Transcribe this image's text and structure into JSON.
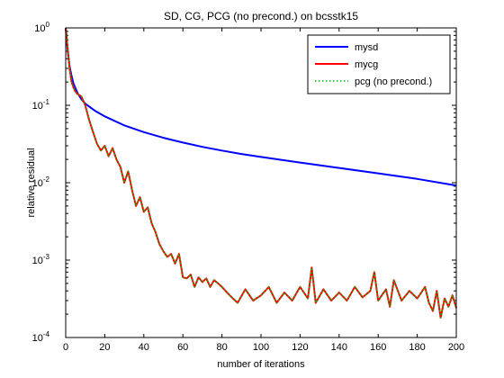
{
  "chart_data": {
    "type": "line",
    "title": "SD, CG, PCG (no precond.) on bcsstk15",
    "xlabel": "number of iterations",
    "ylabel": "relative residual",
    "xlim": [
      0,
      200
    ],
    "ylim": [
      0.0001,
      1
    ],
    "yscale": "log",
    "grid": false,
    "legend_position": "top-right",
    "x_ticks": [
      0,
      20,
      40,
      60,
      80,
      100,
      120,
      140,
      160,
      180,
      200
    ],
    "x_tick_labels": [
      "0",
      "20",
      "40",
      "60",
      "80",
      "100",
      "120",
      "140",
      "160",
      "180",
      "200"
    ],
    "y_ticks": [
      0.0001,
      0.001,
      0.01,
      0.1,
      1
    ],
    "y_tick_labels": [
      {
        "base": "10",
        "exp": "-4"
      },
      {
        "base": "10",
        "exp": "-3"
      },
      {
        "base": "10",
        "exp": "-2"
      },
      {
        "base": "10",
        "exp": "-1"
      },
      {
        "base": "10",
        "exp": "0"
      }
    ],
    "series": [
      {
        "name": "mysd",
        "color": "#0000ff",
        "style": "solid",
        "x": [
          0,
          1,
          2,
          3,
          4,
          6,
          8,
          10,
          15,
          20,
          30,
          40,
          50,
          60,
          70,
          80,
          90,
          100,
          120,
          140,
          160,
          180,
          200
        ],
        "y": [
          1.0,
          0.5,
          0.32,
          0.24,
          0.19,
          0.145,
          0.12,
          0.105,
          0.085,
          0.072,
          0.055,
          0.045,
          0.038,
          0.033,
          0.029,
          0.026,
          0.0235,
          0.0215,
          0.0182,
          0.0155,
          0.0132,
          0.0112,
          0.0092
        ]
      },
      {
        "name": "mycg",
        "color": "#ff0000",
        "style": "solid",
        "x": [
          0,
          1,
          2,
          3,
          4,
          5,
          6,
          8,
          10,
          12,
          14,
          16,
          18,
          20,
          22,
          24,
          26,
          28,
          30,
          32,
          34,
          36,
          38,
          40,
          42,
          44,
          46,
          48,
          50,
          52,
          54,
          56,
          58,
          60,
          62,
          64,
          66,
          68,
          70,
          72,
          74,
          76,
          78,
          80,
          84,
          88,
          92,
          96,
          100,
          104,
          108,
          112,
          116,
          120,
          124,
          126,
          128,
          132,
          136,
          140,
          144,
          148,
          152,
          156,
          158,
          160,
          164,
          166,
          168,
          172,
          176,
          180,
          184,
          186,
          188,
          190,
          192,
          194,
          196,
          198,
          200
        ],
        "y": [
          1.0,
          0.55,
          0.3,
          0.2,
          0.17,
          0.15,
          0.14,
          0.13,
          0.1,
          0.065,
          0.045,
          0.032,
          0.026,
          0.03,
          0.022,
          0.028,
          0.02,
          0.016,
          0.01,
          0.014,
          0.008,
          0.005,
          0.0065,
          0.0042,
          0.0048,
          0.003,
          0.0023,
          0.0016,
          0.0013,
          0.0011,
          0.0012,
          0.0009,
          0.0012,
          0.0006,
          0.00058,
          0.00065,
          0.00045,
          0.0006,
          0.00052,
          0.00058,
          0.00045,
          0.00055,
          0.0005,
          0.00045,
          0.00035,
          0.00028,
          0.00042,
          0.0003,
          0.00035,
          0.00045,
          0.00028,
          0.00038,
          0.0003,
          0.00045,
          0.00032,
          0.0008,
          0.00028,
          0.00042,
          0.0003,
          0.00038,
          0.0003,
          0.00045,
          0.00033,
          0.0004,
          0.0007,
          0.0003,
          0.00042,
          0.00025,
          0.00055,
          0.0003,
          0.0004,
          0.00032,
          0.00045,
          0.00028,
          0.00022,
          0.0004,
          0.00018,
          0.00032,
          0.00025,
          0.00035,
          0.00024
        ]
      },
      {
        "name": "pcg (no precond.)",
        "color": "#00bb00",
        "style": "dotted",
        "x": [
          0,
          1,
          2,
          3,
          4,
          5,
          6,
          8,
          10,
          12,
          14,
          16,
          18,
          20,
          22,
          24,
          26,
          28,
          30,
          32,
          34,
          36,
          38,
          40,
          42,
          44,
          46,
          48,
          50,
          52,
          54,
          56,
          58,
          60,
          62,
          64,
          66,
          68,
          70,
          72,
          74,
          76,
          78,
          80,
          84,
          88,
          92,
          96,
          100,
          104,
          108,
          112,
          116,
          120,
          124,
          126,
          128,
          132,
          136,
          140,
          144,
          148,
          152,
          156,
          158,
          160,
          164,
          166,
          168,
          172,
          176,
          180,
          184,
          186,
          188,
          190,
          192,
          194,
          196,
          198,
          200
        ],
        "y": [
          1.0,
          0.55,
          0.3,
          0.2,
          0.17,
          0.15,
          0.14,
          0.13,
          0.1,
          0.065,
          0.045,
          0.032,
          0.026,
          0.03,
          0.022,
          0.028,
          0.02,
          0.016,
          0.01,
          0.014,
          0.008,
          0.005,
          0.0065,
          0.0042,
          0.0048,
          0.003,
          0.0023,
          0.0016,
          0.0013,
          0.0011,
          0.0012,
          0.0009,
          0.0012,
          0.0006,
          0.00058,
          0.00065,
          0.00045,
          0.0006,
          0.00052,
          0.00058,
          0.00045,
          0.00055,
          0.0005,
          0.00045,
          0.00035,
          0.00028,
          0.00042,
          0.0003,
          0.00035,
          0.00045,
          0.00028,
          0.00038,
          0.0003,
          0.00045,
          0.00032,
          0.0008,
          0.00028,
          0.00042,
          0.0003,
          0.00038,
          0.0003,
          0.00045,
          0.00033,
          0.0004,
          0.0007,
          0.0003,
          0.00042,
          0.00025,
          0.00055,
          0.0003,
          0.0004,
          0.00032,
          0.00045,
          0.00028,
          0.00022,
          0.0004,
          0.00018,
          0.00032,
          0.00025,
          0.00035,
          0.00024
        ]
      }
    ]
  }
}
